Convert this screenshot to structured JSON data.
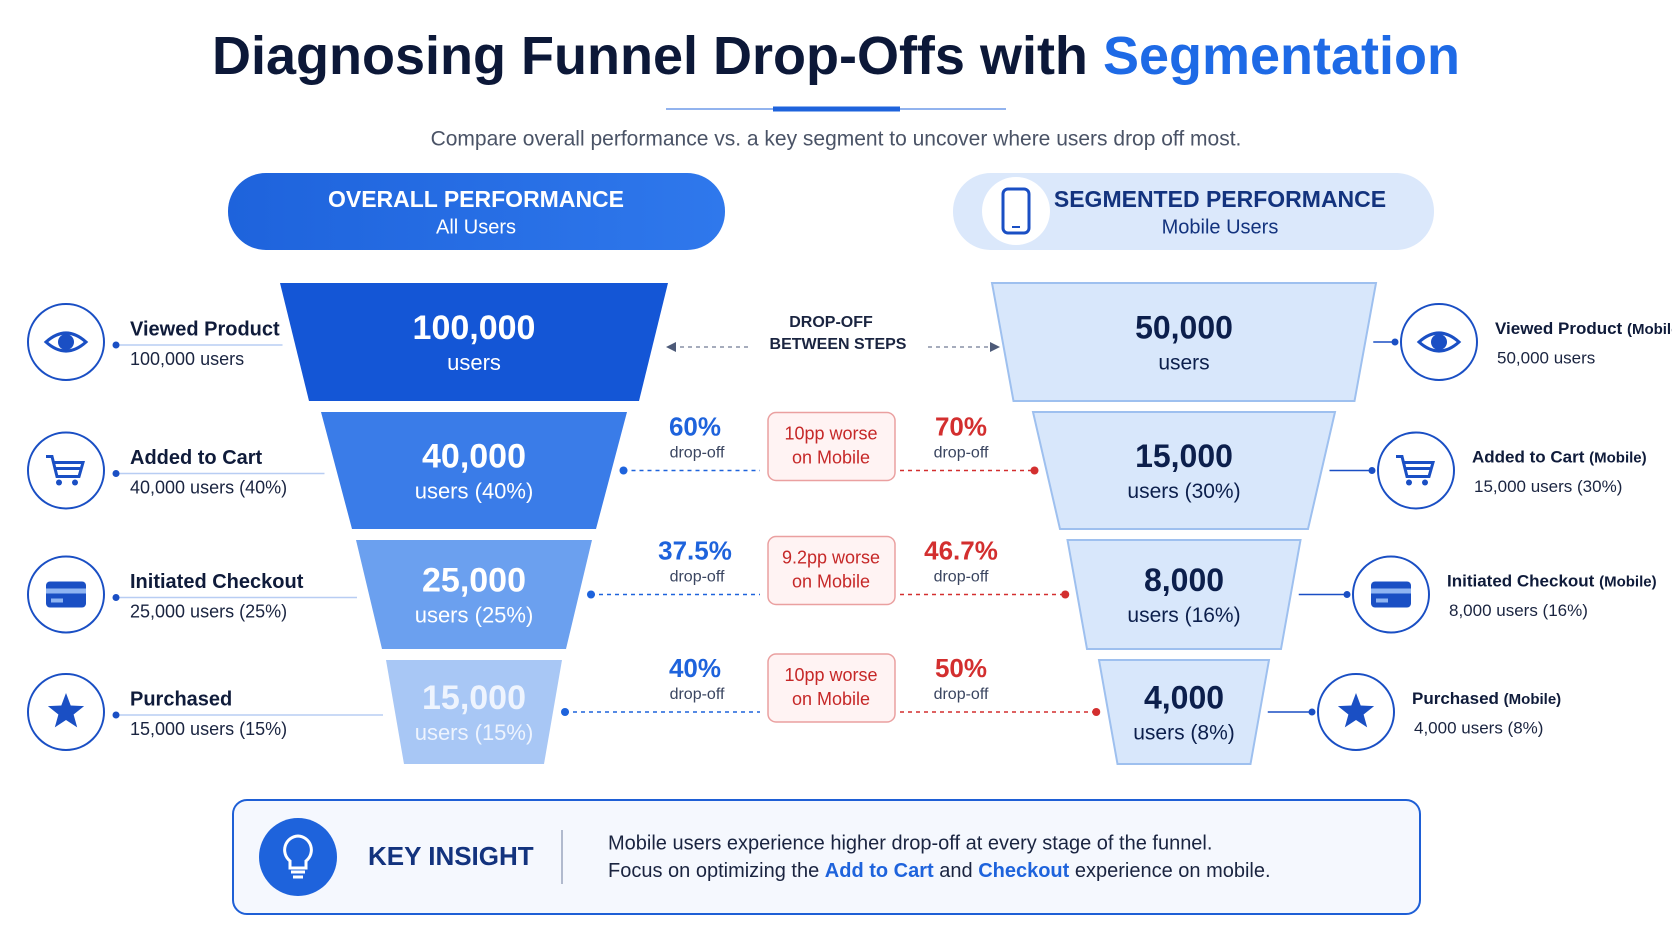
{
  "header": {
    "title": "Diagnosing Funnel Drop-Offs with",
    "title_highlight": "Segmentation",
    "subtitle": "Compare overall performance vs. a key segment to uncover where users drop off most."
  },
  "overall": {
    "title": "OVERALL PERFORMANCE",
    "subtitle": "All Users",
    "stages": [
      {
        "value": "100,000",
        "unit": "users",
        "label": "Viewed Product",
        "detail": "100,000 users"
      },
      {
        "value": "40,000",
        "unit": "users (40%)",
        "label": "Added to Cart",
        "detail": "40,000 users (40%)"
      },
      {
        "value": "25,000",
        "unit": "users (25%)",
        "label": "Initiated Checkout",
        "detail": "25,000 users (25%)"
      },
      {
        "value": "15,000",
        "unit": "users (15%)",
        "label": "Purchased",
        "detail": "15,000 users (15%)"
      }
    ]
  },
  "segmented": {
    "title": "SEGMENTED PERFORMANCE",
    "subtitle": "Mobile Users",
    "stages": [
      {
        "value": "50,000",
        "unit": "users",
        "label": "Viewed Product",
        "label_suffix": "(Mobile)",
        "detail": "50,000 users"
      },
      {
        "value": "15,000",
        "unit": "users (30%)",
        "label": "Added to Cart",
        "label_suffix": "(Mobile)",
        "detail": "15,000 users (30%)"
      },
      {
        "value": "8,000",
        "unit": "users (16%)",
        "label": "Initiated Checkout",
        "label_suffix": "(Mobile)",
        "detail": "8,000 users (16%)"
      },
      {
        "value": "4,000",
        "unit": "users (8%)",
        "label": "Purchased",
        "label_suffix": "(Mobile)",
        "detail": "4,000 users (8%)"
      }
    ]
  },
  "dropoff_header": [
    "DROP-OFF",
    "BETWEEN STEPS"
  ],
  "dropoffs": [
    {
      "overall": "60%",
      "overall_label": "drop-off",
      "comparison": [
        "10pp worse",
        "on Mobile"
      ],
      "segment": "70%",
      "segment_label": "drop-off"
    },
    {
      "overall": "37.5%",
      "overall_label": "drop-off",
      "comparison": [
        "9.2pp worse",
        "on Mobile"
      ],
      "segment": "46.7%",
      "segment_label": "drop-off"
    },
    {
      "overall": "40%",
      "overall_label": "drop-off",
      "comparison": [
        "10pp worse",
        "on Mobile"
      ],
      "segment": "50%",
      "segment_label": "drop-off"
    }
  ],
  "insight": {
    "title": "KEY INSIGHT",
    "line1": "Mobile users experience higher drop-off at every stage of the funnel.",
    "line2": [
      "Focus on optimizing the",
      "Add to Cart",
      "and",
      "Checkout",
      "experience on mobile."
    ]
  }
}
